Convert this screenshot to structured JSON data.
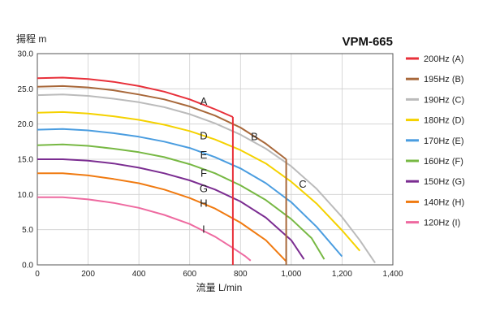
{
  "chart_data": {
    "type": "line",
    "title": "VPM-665",
    "ylabel": "揚程 m",
    "xlabel": "流量 L/min",
    "xlim": [
      0,
      1400
    ],
    "ylim": [
      0,
      30
    ],
    "x_ticks": [
      "0",
      "200",
      "400",
      "600",
      "800",
      "1,000",
      "1,200",
      "1,400"
    ],
    "y_ticks": [
      "0.0",
      "5.0",
      "10.0",
      "15.0",
      "20.0",
      "25.0",
      "30.0"
    ],
    "grid": true,
    "legend_position": "right",
    "series": [
      {
        "name": "200Hz (A)",
        "label": "A",
        "color": "#e8303a",
        "x": [
          0,
          100,
          200,
          300,
          400,
          500,
          600,
          700,
          770
        ],
        "y": [
          26.5,
          26.6,
          26.4,
          26.0,
          25.4,
          24.6,
          23.5,
          22.1,
          21.0
        ]
      },
      {
        "name": "195Hz (B)",
        "label": "B",
        "color": "#a8683a",
        "x": [
          0,
          100,
          200,
          300,
          400,
          500,
          600,
          700,
          800,
          900,
          980
        ],
        "y": [
          25.3,
          25.4,
          25.2,
          24.8,
          24.2,
          23.5,
          22.5,
          21.2,
          19.5,
          17.2,
          15.0
        ]
      },
      {
        "name": "190Hz (C)",
        "label": "C",
        "color": "#bbbbbb",
        "x": [
          0,
          100,
          200,
          300,
          400,
          500,
          600,
          700,
          800,
          900,
          1000,
          1100,
          1200,
          1270,
          1330
        ],
        "y": [
          24.1,
          24.2,
          24.0,
          23.6,
          23.1,
          22.4,
          21.4,
          20.1,
          18.5,
          16.5,
          14.0,
          10.8,
          6.8,
          3.5,
          0.3
        ]
      },
      {
        "name": "180Hz (D)",
        "label": "D",
        "color": "#f5d200",
        "x": [
          0,
          100,
          200,
          300,
          400,
          500,
          600,
          700,
          800,
          900,
          1000,
          1100,
          1200,
          1270
        ],
        "y": [
          21.6,
          21.7,
          21.5,
          21.1,
          20.6,
          19.9,
          19.0,
          17.8,
          16.3,
          14.4,
          11.8,
          8.7,
          4.9,
          2.0
        ]
      },
      {
        "name": "170Hz (E)",
        "label": "E",
        "color": "#4a9de0",
        "x": [
          0,
          100,
          200,
          300,
          400,
          500,
          600,
          700,
          800,
          900,
          1000,
          1100,
          1200
        ],
        "y": [
          19.2,
          19.3,
          19.1,
          18.7,
          18.2,
          17.5,
          16.6,
          15.3,
          13.7,
          11.6,
          8.9,
          5.4,
          1.2
        ]
      },
      {
        "name": "160Hz (F)",
        "label": "F",
        "color": "#77b843",
        "x": [
          0,
          100,
          200,
          300,
          400,
          500,
          600,
          700,
          800,
          900,
          1000,
          1080,
          1130
        ],
        "y": [
          17.0,
          17.1,
          16.9,
          16.5,
          16.0,
          15.3,
          14.3,
          13.0,
          11.3,
          9.2,
          6.5,
          3.8,
          0.8
        ]
      },
      {
        "name": "150Hz (G)",
        "label": "G",
        "color": "#7b2d91",
        "x": [
          0,
          100,
          200,
          300,
          400,
          500,
          600,
          700,
          800,
          900,
          1000,
          1050
        ],
        "y": [
          15.0,
          15.0,
          14.8,
          14.4,
          13.8,
          13.0,
          12.0,
          10.7,
          9.0,
          6.7,
          3.5,
          0.8
        ]
      },
      {
        "name": "140Hz (H)",
        "label": "H",
        "color": "#f07a10",
        "x": [
          0,
          100,
          200,
          300,
          400,
          500,
          600,
          700,
          800,
          900,
          980
        ],
        "y": [
          13.0,
          13.0,
          12.7,
          12.2,
          11.6,
          10.7,
          9.5,
          8.0,
          6.0,
          3.5,
          0.5
        ]
      },
      {
        "name": "120Hz (I)",
        "label": "I",
        "color": "#ee6aa0",
        "x": [
          0,
          100,
          200,
          300,
          400,
          500,
          600,
          700,
          770,
          820,
          840
        ],
        "y": [
          9.6,
          9.6,
          9.3,
          8.8,
          8.1,
          7.1,
          5.8,
          4.0,
          2.4,
          1.2,
          0.6
        ]
      }
    ],
    "cutoff_lines": [
      {
        "series": "A",
        "x": 770,
        "y_top": 21.0
      },
      {
        "series": "B",
        "x": 980,
        "y_top": 15.0
      }
    ],
    "curve_labels": [
      {
        "text": "A",
        "x": 655,
        "y": 23.2
      },
      {
        "text": "B",
        "x": 855,
        "y": 18.2
      },
      {
        "text": "C",
        "x": 1045,
        "y": 11.4
      },
      {
        "text": "D",
        "x": 655,
        "y": 18.3
      },
      {
        "text": "E",
        "x": 655,
        "y": 15.6
      },
      {
        "text": "F",
        "x": 655,
        "y": 13.0
      },
      {
        "text": "G",
        "x": 655,
        "y": 10.8
      },
      {
        "text": "H",
        "x": 655,
        "y": 8.7
      },
      {
        "text": "I",
        "x": 655,
        "y": 5.0
      }
    ]
  }
}
